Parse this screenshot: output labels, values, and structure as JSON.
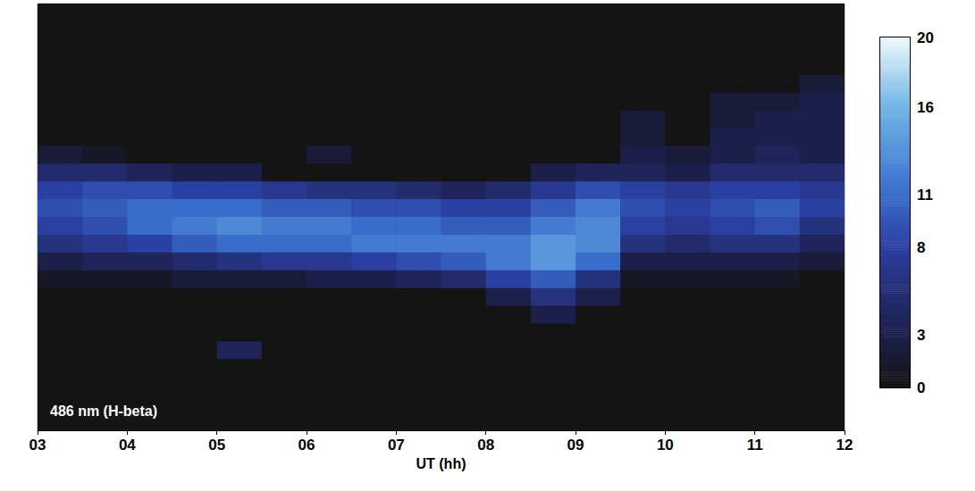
{
  "chart_data": {
    "type": "heatmap",
    "x": [
      3.25,
      3.75,
      4.25,
      4.75,
      5.25,
      5.75,
      6.25,
      6.75,
      7.25,
      7.75,
      8.25,
      8.75,
      9.25,
      9.75,
      10.25,
      10.75,
      11.25,
      11.75
    ],
    "xlim": [
      3,
      12
    ],
    "xticks": [
      {
        "value": 3,
        "label": "03"
      },
      {
        "value": 4,
        "label": "04"
      },
      {
        "value": 5,
        "label": "05"
      },
      {
        "value": 6,
        "label": "06"
      },
      {
        "value": 7,
        "label": "07"
      },
      {
        "value": 8,
        "label": "08"
      },
      {
        "value": 9,
        "label": "09"
      },
      {
        "value": 10,
        "label": "10"
      },
      {
        "value": 11,
        "label": "11"
      },
      {
        "value": 12,
        "label": "12"
      }
    ],
    "xlabel": "UT (hh)",
    "annotation": "486 nm (H-beta)",
    "tick_labels": "x",
    "cells": [
      [
        0,
        0,
        0,
        0,
        0,
        0,
        0,
        0,
        2,
        5,
        8,
        9,
        8,
        6,
        3,
        1,
        0,
        0,
        0,
        0,
        0,
        0,
        0,
        0
      ],
      [
        0,
        0,
        0,
        0,
        0,
        0,
        0,
        0,
        1,
        5,
        9,
        10,
        9,
        7,
        4,
        1,
        0,
        0,
        0,
        0,
        0,
        0,
        0,
        0
      ],
      [
        0,
        0,
        0,
        0,
        0,
        0,
        0,
        0,
        0,
        4,
        9,
        11,
        11,
        8,
        4,
        1,
        0,
        0,
        0,
        0,
        0,
        0,
        0,
        0
      ],
      [
        0,
        0,
        0,
        0,
        0,
        0,
        0,
        0,
        0,
        3,
        8,
        11,
        12,
        10,
        5,
        2,
        0,
        0,
        0,
        0,
        0,
        0,
        0,
        0
      ],
      [
        0,
        0,
        0,
        0,
        0,
        0,
        0,
        0,
        0,
        3,
        8,
        11,
        13,
        11,
        6,
        2,
        0,
        0,
        0,
        4,
        0,
        0,
        0,
        0
      ],
      [
        0,
        0,
        0,
        0,
        0,
        0,
        0,
        0,
        0,
        0,
        7,
        10,
        12,
        11,
        7,
        2,
        0,
        0,
        0,
        0,
        0,
        0,
        0,
        0
      ],
      [
        0,
        0,
        0,
        0,
        0,
        0,
        0,
        0,
        2,
        0,
        6,
        10,
        12,
        11,
        7,
        3,
        0,
        0,
        0,
        0,
        0,
        0,
        0,
        0
      ],
      [
        0,
        0,
        0,
        0,
        0,
        0,
        0,
        0,
        0,
        0,
        6,
        9,
        11,
        12,
        8,
        3,
        0,
        0,
        0,
        0,
        0,
        0,
        0,
        0
      ],
      [
        0,
        0,
        0,
        0,
        0,
        0,
        0,
        0,
        0,
        0,
        5,
        9,
        11,
        12,
        9,
        4,
        0,
        0,
        0,
        0,
        0,
        0,
        0,
        0
      ],
      [
        0,
        0,
        0,
        0,
        0,
        0,
        0,
        0,
        0,
        0,
        4,
        8,
        10,
        12,
        10,
        5,
        0,
        0,
        0,
        0,
        0,
        0,
        0,
        0
      ],
      [
        0,
        0,
        0,
        0,
        0,
        0,
        0,
        0,
        0,
        0,
        5,
        8,
        10,
        12,
        12,
        8,
        3,
        0,
        0,
        0,
        0,
        0,
        0,
        0
      ],
      [
        0,
        0,
        0,
        0,
        0,
        0,
        0,
        0,
        0,
        3,
        7,
        10,
        12,
        14,
        14,
        10,
        6,
        3,
        0,
        0,
        0,
        0,
        0,
        0
      ],
      [
        0,
        0,
        0,
        0,
        0,
        0,
        0,
        0,
        0,
        4,
        9,
        12,
        13,
        13,
        11,
        6,
        3,
        0,
        0,
        0,
        0,
        0,
        0,
        0
      ],
      [
        0,
        0,
        0,
        0,
        0,
        0,
        2,
        2,
        3,
        4,
        8,
        9,
        8,
        6,
        3,
        1,
        0,
        0,
        0,
        0,
        0,
        0,
        0,
        0
      ],
      [
        0,
        0,
        0,
        0,
        0,
        0,
        0,
        0,
        2,
        3,
        7,
        8,
        7,
        5,
        3,
        1,
        0,
        0,
        0,
        0,
        0,
        0,
        0,
        0
      ],
      [
        0,
        0,
        0,
        0,
        0,
        2,
        2,
        3,
        3,
        5,
        8,
        9,
        8,
        6,
        3,
        1,
        0,
        0,
        0,
        0,
        0,
        0,
        0,
        0
      ],
      [
        0,
        0,
        0,
        0,
        0,
        2,
        3,
        3,
        4,
        5,
        8,
        10,
        9,
        6,
        3,
        1,
        0,
        0,
        0,
        0,
        0,
        0,
        0,
        0
      ],
      [
        0,
        0,
        0,
        0,
        2,
        3,
        3,
        3,
        3,
        5,
        7,
        8,
        6,
        4,
        2,
        0,
        0,
        0,
        0,
        0,
        0,
        0,
        0,
        0
      ]
    ],
    "colorbar_range": [
      0,
      20
    ],
    "colorbar_ticks": [
      0,
      3,
      8,
      11,
      16,
      20
    ]
  }
}
